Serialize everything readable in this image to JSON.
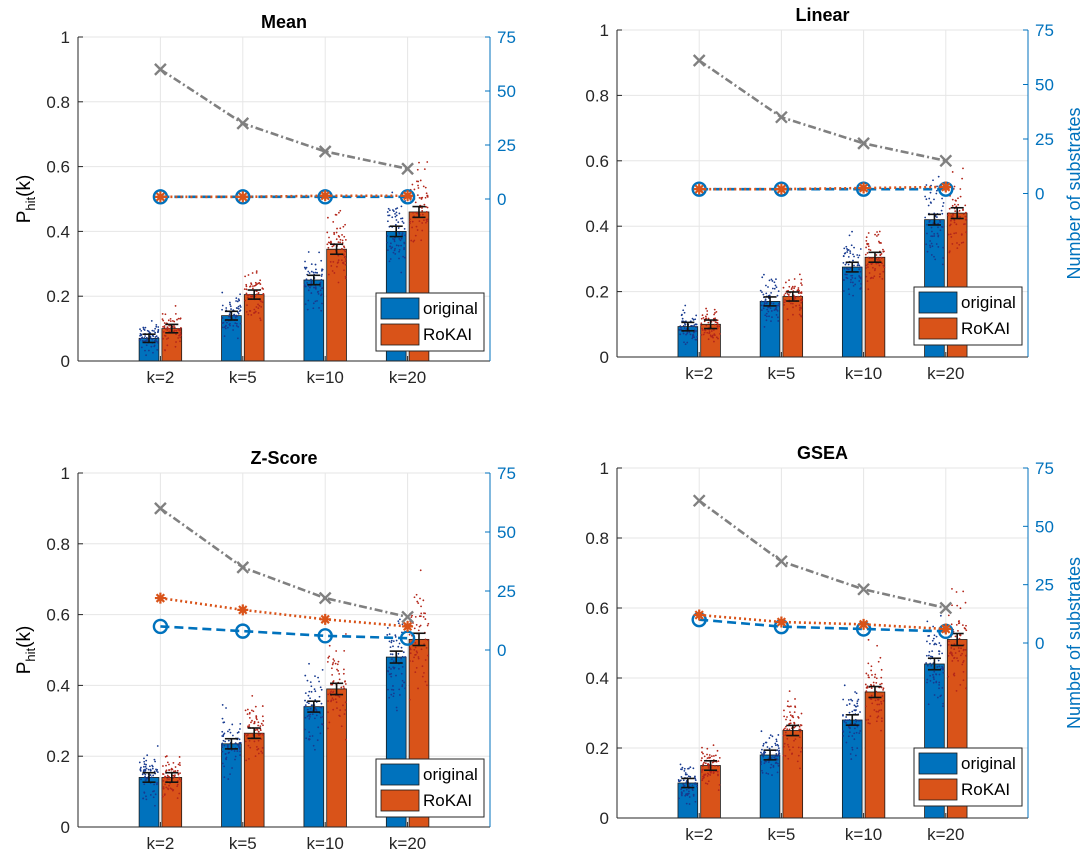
{
  "colors": {
    "original": "#0072BD",
    "rokai": "#D95319",
    "count_axis": "#0072BD",
    "gray_line": "#808080",
    "axis": "#262626",
    "grid": "#e6e6e6"
  },
  "chart_data": [
    {
      "type": "bar",
      "title": "Mean",
      "ylabel": "P_hit(k)",
      "y2label": "",
      "categories": [
        "k=2",
        "k=5",
        "k=10",
        "k=20"
      ],
      "ylim": [
        0,
        1
      ],
      "yticks": [
        "0",
        "0.2",
        "0.4",
        "0.6",
        "0.8",
        "1"
      ],
      "y2lim": [
        -75,
        75
      ],
      "y2ticks": [
        "0",
        "25",
        "50",
        "75"
      ],
      "legend": [
        "original",
        "RoKAI"
      ],
      "legend_position": "lower-right",
      "series": [
        {
          "name": "original",
          "values": [
            0.07,
            0.14,
            0.25,
            0.4
          ]
        },
        {
          "name": "RoKAI",
          "values": [
            0.1,
            0.205,
            0.345,
            0.46
          ]
        }
      ],
      "substrate_lines": [
        {
          "marker": "x",
          "values": [
            60,
            35,
            22,
            14
          ]
        },
        {
          "marker": "circle",
          "values": [
            1,
            1,
            1,
            1
          ]
        },
        {
          "marker": "star",
          "values": [
            1,
            1,
            1.5,
            1.5
          ]
        }
      ]
    },
    {
      "type": "bar",
      "title": "Linear",
      "ylabel": "",
      "y2label": "Number of substrates",
      "categories": [
        "k=2",
        "k=5",
        "k=10",
        "k=20"
      ],
      "ylim": [
        0,
        1
      ],
      "yticks": [
        "0",
        "0.2",
        "0.4",
        "0.6",
        "0.8",
        "1"
      ],
      "y2lim": [
        -75,
        75
      ],
      "y2ticks": [
        "0",
        "25",
        "50",
        "75"
      ],
      "legend": [
        "original",
        "RoKAI"
      ],
      "legend_position": "lower-right",
      "series": [
        {
          "name": "original",
          "values": [
            0.093,
            0.17,
            0.275,
            0.42
          ]
        },
        {
          "name": "RoKAI",
          "values": [
            0.1,
            0.185,
            0.305,
            0.44
          ]
        }
      ],
      "substrate_lines": [
        {
          "marker": "x",
          "values": [
            61,
            35,
            23,
            15
          ]
        },
        {
          "marker": "circle",
          "values": [
            2,
            2,
            2,
            2
          ]
        },
        {
          "marker": "star",
          "values": [
            2,
            2,
            2.5,
            3
          ]
        }
      ]
    },
    {
      "type": "bar",
      "title": "Z-Score",
      "ylabel": "P_hit(k)",
      "y2label": "",
      "categories": [
        "k=2",
        "k=5",
        "k=10",
        "k=20"
      ],
      "ylim": [
        0,
        1
      ],
      "yticks": [
        "0",
        "0.2",
        "0.4",
        "0.6",
        "0.8",
        "1"
      ],
      "y2lim": [
        -75,
        75
      ],
      "y2ticks": [
        "0",
        "25",
        "50",
        "75"
      ],
      "legend": [
        "original",
        "RoKAI"
      ],
      "legend_position": "lower-right",
      "series": [
        {
          "name": "original",
          "values": [
            0.14,
            0.235,
            0.34,
            0.48
          ]
        },
        {
          "name": "RoKAI",
          "values": [
            0.14,
            0.265,
            0.39,
            0.53
          ]
        }
      ],
      "substrate_lines": [
        {
          "marker": "x",
          "values": [
            60,
            35,
            22,
            14
          ]
        },
        {
          "marker": "circle",
          "values": [
            10,
            8,
            6,
            5
          ]
        },
        {
          "marker": "star",
          "values": [
            22,
            17,
            13,
            10
          ]
        }
      ]
    },
    {
      "type": "bar",
      "title": "GSEA",
      "ylabel": "",
      "y2label": "Number of substrates",
      "categories": [
        "k=2",
        "k=5",
        "k=10",
        "k=20"
      ],
      "ylim": [
        0,
        1
      ],
      "yticks": [
        "0",
        "0.2",
        "0.4",
        "0.6",
        "0.8",
        "1"
      ],
      "y2lim": [
        -75,
        75
      ],
      "y2ticks": [
        "0",
        "25",
        "50",
        "75"
      ],
      "legend": [
        "original",
        "RoKAI"
      ],
      "legend_position": "lower-right",
      "series": [
        {
          "name": "original",
          "values": [
            0.1,
            0.18,
            0.28,
            0.44
          ]
        },
        {
          "name": "RoKAI",
          "values": [
            0.15,
            0.25,
            0.36,
            0.51
          ]
        }
      ],
      "substrate_lines": [
        {
          "marker": "x",
          "values": [
            61,
            35,
            23,
            15
          ]
        },
        {
          "marker": "circle",
          "values": [
            10,
            7,
            6,
            5
          ]
        },
        {
          "marker": "star",
          "values": [
            12,
            9,
            8,
            6
          ]
        }
      ]
    }
  ]
}
